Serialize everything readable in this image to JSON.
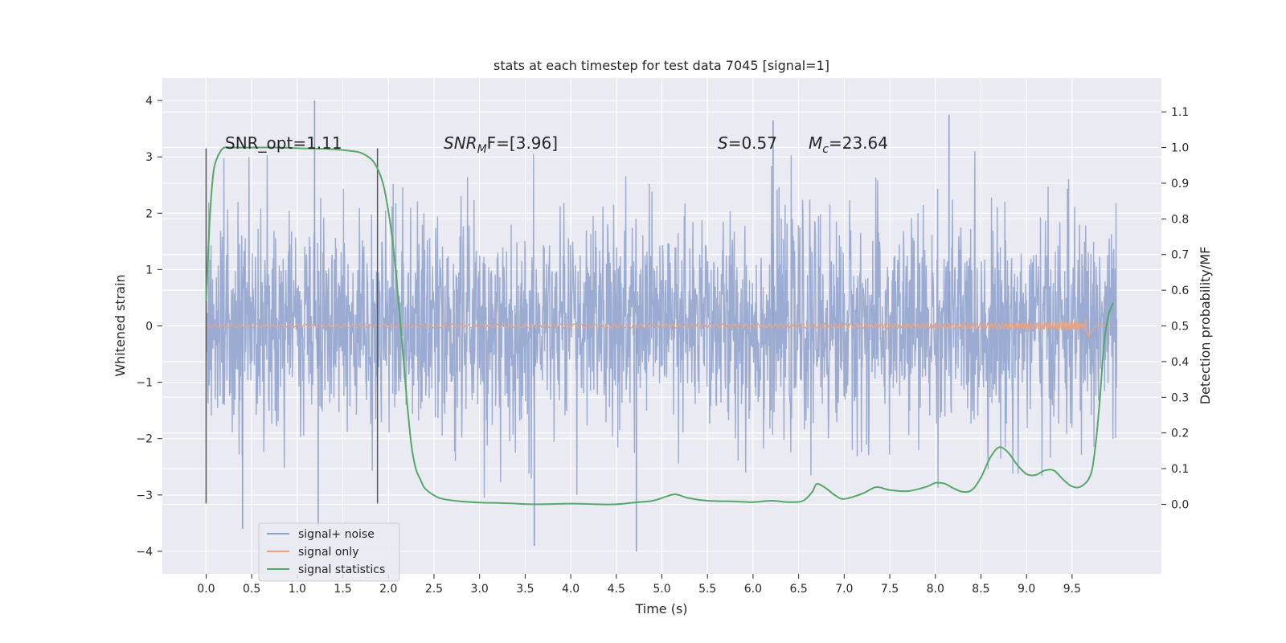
{
  "chart_data": {
    "type": "line",
    "title": "stats at each timestep for test data 7045 [signal=1]",
    "xlabel": "Time (s)",
    "ylabel": "Whitened strain",
    "ylabel_right": "Detection probability/MF",
    "xlim": [
      -0.48,
      10.48
    ],
    "ylim": [
      -4.4,
      4.4
    ],
    "ylim_right": [
      -0.195,
      1.195
    ],
    "x_ticks": [
      0.0,
      0.5,
      1.0,
      1.5,
      2.0,
      2.5,
      3.0,
      3.5,
      4.0,
      4.5,
      5.0,
      5.5,
      6.0,
      6.5,
      7.0,
      7.5,
      8.0,
      8.5,
      9.0,
      9.5
    ],
    "x_tick_labels": [
      "0.0",
      "0.5",
      "1.0",
      "1.5",
      "2.0",
      "2.5",
      "3.0",
      "3.5",
      "4.0",
      "4.5",
      "5.0",
      "5.5",
      "6.0",
      "6.5",
      "7.0",
      "7.5",
      "8.0",
      "8.5",
      "9.0",
      "9.5"
    ],
    "y_ticks": [
      4,
      3,
      2,
      1,
      0,
      -1,
      -2,
      -3,
      -4
    ],
    "y_tick_labels": [
      "4",
      "3",
      "2",
      "1",
      "0",
      "−1",
      "−2",
      "−3",
      "−4"
    ],
    "y_right_ticks": [
      1.1,
      1.0,
      0.9,
      0.8,
      0.7,
      0.6,
      0.5,
      0.4,
      0.3,
      0.2,
      0.1,
      0.0
    ],
    "y_right_tick_labels": [
      "1.1",
      "1.0",
      "0.9",
      "0.8",
      "0.7",
      "0.6",
      "0.5",
      "0.4",
      "0.3",
      "0.2",
      "0.1",
      "0.0"
    ],
    "grid": true,
    "legend_position": "lower-left",
    "annotations": {
      "snr_opt": "SNR_opt=1.11",
      "snr_mf_main": "SNR",
      "snr_mf_sub": "M",
      "snr_mf_rest": "F=[3.96]",
      "s_main": "S",
      "s_rest": "=0.57",
      "mc_main": "M",
      "mc_sub": "c",
      "mc_rest": "=23.64"
    },
    "vlines": [
      0.0,
      1.88
    ],
    "vline_ylim": [
      -3.15,
      3.15
    ],
    "series": [
      {
        "name": "signal+ noise",
        "color": "#8da0cb",
        "description_kind": "noise",
        "x_range": [
          0.0,
          9.99
        ],
        "typical_amplitude": 1.25,
        "peak_max": 4.0,
        "peak_min": -4.0,
        "peaks": [
          [
            1.19,
            4.0
          ],
          [
            4.72,
            -4.0
          ],
          [
            3.6,
            -3.9
          ],
          [
            8.15,
            3.75
          ],
          [
            6.22,
            3.65
          ],
          [
            0.4,
            -3.6
          ],
          [
            1.23,
            -3.55
          ]
        ]
      },
      {
        "name": "signal only",
        "color": "#e8a383",
        "x_range": [
          0.0,
          9.99
        ],
        "chirp_peak_time": 9.68,
        "chirp_peak_amplitude": 0.22
      },
      {
        "name": "signal statistics",
        "color": "#55a868",
        "axis": "right",
        "x": [
          0.0,
          0.04,
          0.08,
          0.12,
          0.16,
          0.2,
          0.3,
          0.5,
          0.8,
          1.0,
          1.2,
          1.4,
          1.6,
          1.7,
          1.8,
          1.85,
          1.9,
          1.95,
          2.0,
          2.05,
          2.1,
          2.15,
          2.2,
          2.25,
          2.3,
          2.35,
          2.4,
          2.5,
          2.6,
          2.8,
          3.0,
          3.3,
          3.6,
          4.0,
          4.3,
          4.5,
          4.7,
          4.9,
          5.05,
          5.15,
          5.3,
          5.5,
          5.8,
          6.0,
          6.2,
          6.4,
          6.55,
          6.65,
          6.7,
          6.8,
          6.9,
          7.0,
          7.2,
          7.35,
          7.5,
          7.7,
          7.9,
          8.0,
          8.1,
          8.2,
          8.3,
          8.4,
          8.5,
          8.6,
          8.7,
          8.8,
          8.9,
          9.0,
          9.1,
          9.2,
          9.3,
          9.4,
          9.5,
          9.6,
          9.7,
          9.75,
          9.8,
          9.85,
          9.9,
          9.95
        ],
        "y": [
          0.57,
          0.8,
          0.93,
          0.97,
          0.99,
          1.0,
          1.0,
          1.0,
          1.0,
          0.998,
          0.997,
          0.995,
          0.99,
          0.985,
          0.97,
          0.955,
          0.93,
          0.89,
          0.82,
          0.73,
          0.6,
          0.45,
          0.3,
          0.17,
          0.1,
          0.07,
          0.045,
          0.025,
          0.015,
          0.008,
          0.005,
          0.003,
          0.0,
          0.002,
          0.0,
          0.0,
          0.005,
          0.01,
          0.022,
          0.028,
          0.017,
          0.01,
          0.008,
          0.006,
          0.01,
          0.006,
          0.01,
          0.035,
          0.057,
          0.045,
          0.025,
          0.015,
          0.03,
          0.048,
          0.04,
          0.037,
          0.049,
          0.06,
          0.058,
          0.045,
          0.035,
          0.04,
          0.075,
          0.13,
          0.16,
          0.145,
          0.11,
          0.085,
          0.082,
          0.095,
          0.095,
          0.07,
          0.05,
          0.05,
          0.08,
          0.15,
          0.28,
          0.45,
          0.53,
          0.565
        ]
      }
    ]
  }
}
